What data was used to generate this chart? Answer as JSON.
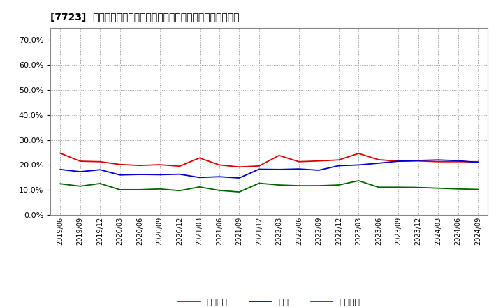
{
  "title": "[7723]  売上債権、在庫、買入債務の総資産に対する比率の推移",
  "legend_labels": [
    "売上債権",
    "在庫",
    "買入債務"
  ],
  "line_colors": [
    "#dd0000",
    "#0000cc",
    "#006600"
  ],
  "background_color": "#ffffff",
  "plot_bg_color": "#ffffff",
  "grid_color": "#999999",
  "ylim": [
    0.0,
    0.75
  ],
  "yticks": [
    0.0,
    0.1,
    0.2,
    0.3,
    0.4,
    0.5,
    0.6,
    0.7
  ],
  "dates": [
    "2019/06",
    "2019/09",
    "2019/12",
    "2020/03",
    "2020/06",
    "2020/09",
    "2020/12",
    "2021/03",
    "2021/06",
    "2021/09",
    "2021/12",
    "2022/03",
    "2022/06",
    "2022/09",
    "2022/12",
    "2023/03",
    "2023/06",
    "2023/09",
    "2023/12",
    "2024/03",
    "2024/06",
    "2024/09"
  ],
  "receivables": [
    0.247,
    0.215,
    0.213,
    0.202,
    0.198,
    0.201,
    0.195,
    0.228,
    0.2,
    0.192,
    0.196,
    0.238,
    0.213,
    0.216,
    0.22,
    0.246,
    0.221,
    0.215,
    0.216,
    0.213,
    0.213,
    0.213
  ],
  "inventory": [
    0.182,
    0.173,
    0.181,
    0.16,
    0.162,
    0.161,
    0.163,
    0.15,
    0.153,
    0.148,
    0.183,
    0.182,
    0.184,
    0.179,
    0.197,
    0.2,
    0.207,
    0.215,
    0.218,
    0.22,
    0.217,
    0.21
  ],
  "payables": [
    0.125,
    0.115,
    0.126,
    0.101,
    0.101,
    0.104,
    0.097,
    0.112,
    0.098,
    0.092,
    0.127,
    0.12,
    0.117,
    0.117,
    0.12,
    0.137,
    0.111,
    0.111,
    0.11,
    0.107,
    0.104,
    0.102
  ]
}
